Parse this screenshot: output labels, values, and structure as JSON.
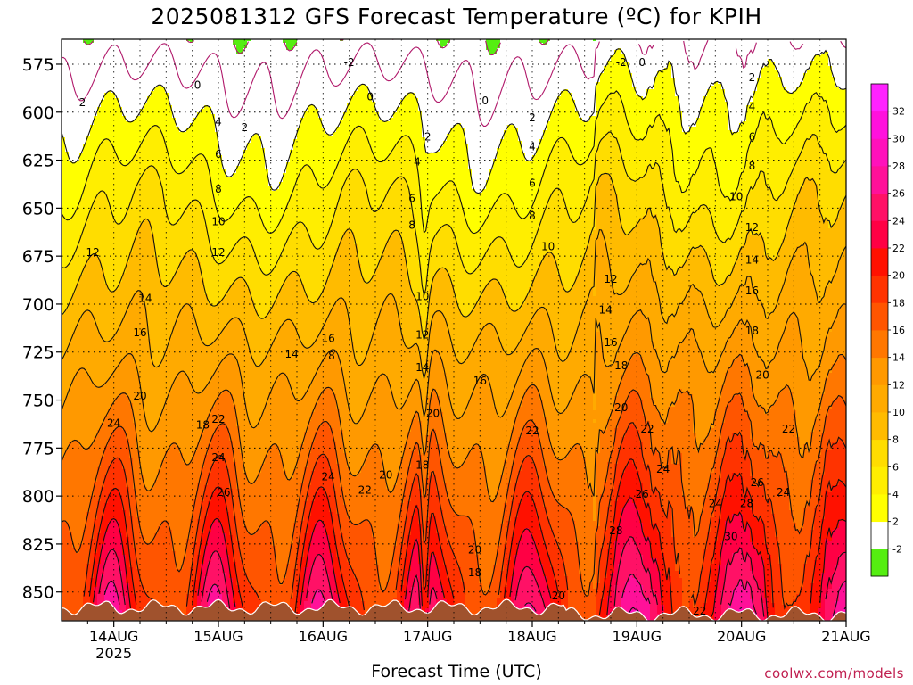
{
  "page": {
    "title": "2025081312 GFS Forecast Temperature (ºC) for KPIH",
    "xlabel": "Forecast Time (UTC)",
    "credit": "coolwx.com/models"
  },
  "chart_data": {
    "type": "heatmap",
    "title": "2025081312 GFS Forecast Temperature (ºC) for KPIH",
    "xlabel": "Forecast Time (UTC)",
    "ylabel": "",
    "x_ticks": [
      {
        "day": 0,
        "label": "14AUG",
        "sublabel": "2025"
      },
      {
        "day": 1,
        "label": "15AUG",
        "sublabel": ""
      },
      {
        "day": 2,
        "label": "16AUG",
        "sublabel": ""
      },
      {
        "day": 3,
        "label": "17AUG",
        "sublabel": ""
      },
      {
        "day": 4,
        "label": "18AUG",
        "sublabel": ""
      },
      {
        "day": 5,
        "label": "19AUG",
        "sublabel": ""
      },
      {
        "day": 6,
        "label": "20AUG",
        "sublabel": ""
      },
      {
        "day": 7,
        "label": "21AUG",
        "sublabel": ""
      }
    ],
    "x_range": [
      -0.5,
      7.0
    ],
    "y_ticks": [
      575,
      600,
      625,
      650,
      675,
      700,
      725,
      750,
      775,
      800,
      825,
      850
    ],
    "y_range": [
      562,
      865
    ],
    "y_axis": "pressure (inverted)",
    "grid": "dotted",
    "colorbar": {
      "placement": "right",
      "levels": [
        -4,
        -2,
        2,
        4,
        6,
        8,
        10,
        12,
        14,
        16,
        18,
        20,
        22,
        24,
        26,
        28,
        30,
        32,
        34
      ],
      "tick_labels": [
        "-2",
        "2",
        "4",
        "6",
        "8",
        "10",
        "12",
        "14",
        "16",
        "18",
        "20",
        "22",
        "24",
        "26",
        "28",
        "30",
        "32"
      ],
      "colors": [
        "#55ee11",
        "#ffffff",
        "#ffff00",
        "#ffee00",
        "#ffdd00",
        "#ffbb00",
        "#ffaa00",
        "#ff9900",
        "#ff7700",
        "#ff5500",
        "#ff3300",
        "#ff1100",
        "#ff0044",
        "#ff1166",
        "#ff1199",
        "#ff11bb",
        "#ff11dd",
        "#ff22ff"
      ]
    },
    "ground_color": "#a0522d",
    "contour_levels": [
      -2,
      0,
      2,
      4,
      6,
      8,
      10,
      12,
      14,
      16,
      18,
      20,
      22,
      24,
      26,
      28,
      30
    ],
    "contour_labels": [
      {
        "t": 0.8,
        "p": 586,
        "v": "0"
      },
      {
        "t": 1.25,
        "p": 608,
        "v": "2"
      },
      {
        "t": 2.25,
        "p": 574,
        "v": "-2"
      },
      {
        "t": 2.45,
        "p": 592,
        "v": "0"
      },
      {
        "t": 3.55,
        "p": 594,
        "v": "0"
      },
      {
        "t": 4.85,
        "p": 574,
        "v": "-2"
      },
      {
        "t": 5.05,
        "p": 574,
        "v": "0"
      },
      {
        "t": 6.1,
        "p": 582,
        "v": "2"
      },
      {
        "t": 6.1,
        "p": 597,
        "v": "4"
      },
      {
        "t": 6.1,
        "p": 613,
        "v": "6"
      },
      {
        "t": 6.1,
        "p": 628,
        "v": "8"
      },
      {
        "t": 5.95,
        "p": 644,
        "v": "10"
      },
      {
        "t": 6.1,
        "p": 660,
        "v": "12"
      },
      {
        "t": 6.1,
        "p": 677,
        "v": "14"
      },
      {
        "t": 6.1,
        "p": 693,
        "v": "16"
      },
      {
        "t": 6.1,
        "p": 714,
        "v": "18"
      },
      {
        "t": 6.2,
        "p": 737,
        "v": "20"
      },
      {
        "t": 6.45,
        "p": 765,
        "v": "22"
      },
      {
        "t": 6.4,
        "p": 798,
        "v": "24"
      },
      {
        "t": 6.15,
        "p": 793,
        "v": "26"
      },
      {
        "t": 6.05,
        "p": 804,
        "v": "28"
      },
      {
        "t": 5.9,
        "p": 821,
        "v": "30"
      },
      {
        "t": 5.75,
        "p": 804,
        "v": "24"
      },
      {
        "t": 5.6,
        "p": 860,
        "v": "22"
      },
      {
        "t": -0.2,
        "p": 673,
        "v": "12"
      },
      {
        "t": -0.3,
        "p": 595,
        "v": "2"
      },
      {
        "t": 0.3,
        "p": 697,
        "v": "14"
      },
      {
        "t": 0.25,
        "p": 715,
        "v": "16"
      },
      {
        "t": 0.25,
        "p": 748,
        "v": "20"
      },
      {
        "t": 0.0,
        "p": 762,
        "v": "24"
      },
      {
        "t": 0.85,
        "p": 763,
        "v": "18"
      },
      {
        "t": 1.0,
        "p": 605,
        "v": "4"
      },
      {
        "t": 1.0,
        "p": 622,
        "v": "6"
      },
      {
        "t": 1.0,
        "p": 640,
        "v": "8"
      },
      {
        "t": 1.0,
        "p": 657,
        "v": "10"
      },
      {
        "t": 1.0,
        "p": 673,
        "v": "12"
      },
      {
        "t": 1.0,
        "p": 760,
        "v": "22"
      },
      {
        "t": 1.0,
        "p": 780,
        "v": "24"
      },
      {
        "t": 1.05,
        "p": 798,
        "v": "26"
      },
      {
        "t": 1.7,
        "p": 726,
        "v": "14"
      },
      {
        "t": 2.05,
        "p": 718,
        "v": "16"
      },
      {
        "t": 2.05,
        "p": 727,
        "v": "18"
      },
      {
        "t": 2.05,
        "p": 790,
        "v": "24"
      },
      {
        "t": 2.4,
        "p": 797,
        "v": "22"
      },
      {
        "t": 2.6,
        "p": 789,
        "v": "20"
      },
      {
        "t": 2.9,
        "p": 626,
        "v": "4"
      },
      {
        "t": 3.0,
        "p": 613,
        "v": "2"
      },
      {
        "t": 2.85,
        "p": 645,
        "v": "6"
      },
      {
        "t": 2.85,
        "p": 659,
        "v": "8"
      },
      {
        "t": 2.95,
        "p": 696,
        "v": "10"
      },
      {
        "t": 2.95,
        "p": 716,
        "v": "12"
      },
      {
        "t": 2.95,
        "p": 733,
        "v": "14"
      },
      {
        "t": 3.05,
        "p": 757,
        "v": "20"
      },
      {
        "t": 2.95,
        "p": 784,
        "v": "18"
      },
      {
        "t": 3.5,
        "p": 740,
        "v": "16"
      },
      {
        "t": 3.45,
        "p": 828,
        "v": "20"
      },
      {
        "t": 3.45,
        "p": 840,
        "v": "18"
      },
      {
        "t": 4.0,
        "p": 603,
        "v": "2"
      },
      {
        "t": 4.0,
        "p": 618,
        "v": "4"
      },
      {
        "t": 4.0,
        "p": 637,
        "v": "6"
      },
      {
        "t": 4.0,
        "p": 654,
        "v": "8"
      },
      {
        "t": 4.15,
        "p": 670,
        "v": "10"
      },
      {
        "t": 4.75,
        "p": 687,
        "v": "12"
      },
      {
        "t": 4.7,
        "p": 703,
        "v": "14"
      },
      {
        "t": 4.75,
        "p": 720,
        "v": "16"
      },
      {
        "t": 4.85,
        "p": 732,
        "v": "18"
      },
      {
        "t": 4.85,
        "p": 754,
        "v": "20"
      },
      {
        "t": 5.1,
        "p": 765,
        "v": "22"
      },
      {
        "t": 4.0,
        "p": 766,
        "v": "22"
      },
      {
        "t": 5.25,
        "p": 786,
        "v": "24"
      },
      {
        "t": 5.05,
        "p": 799,
        "v": "26"
      },
      {
        "t": 4.8,
        "p": 818,
        "v": "28"
      },
      {
        "t": 4.25,
        "p": 852,
        "v": "20"
      }
    ]
  }
}
